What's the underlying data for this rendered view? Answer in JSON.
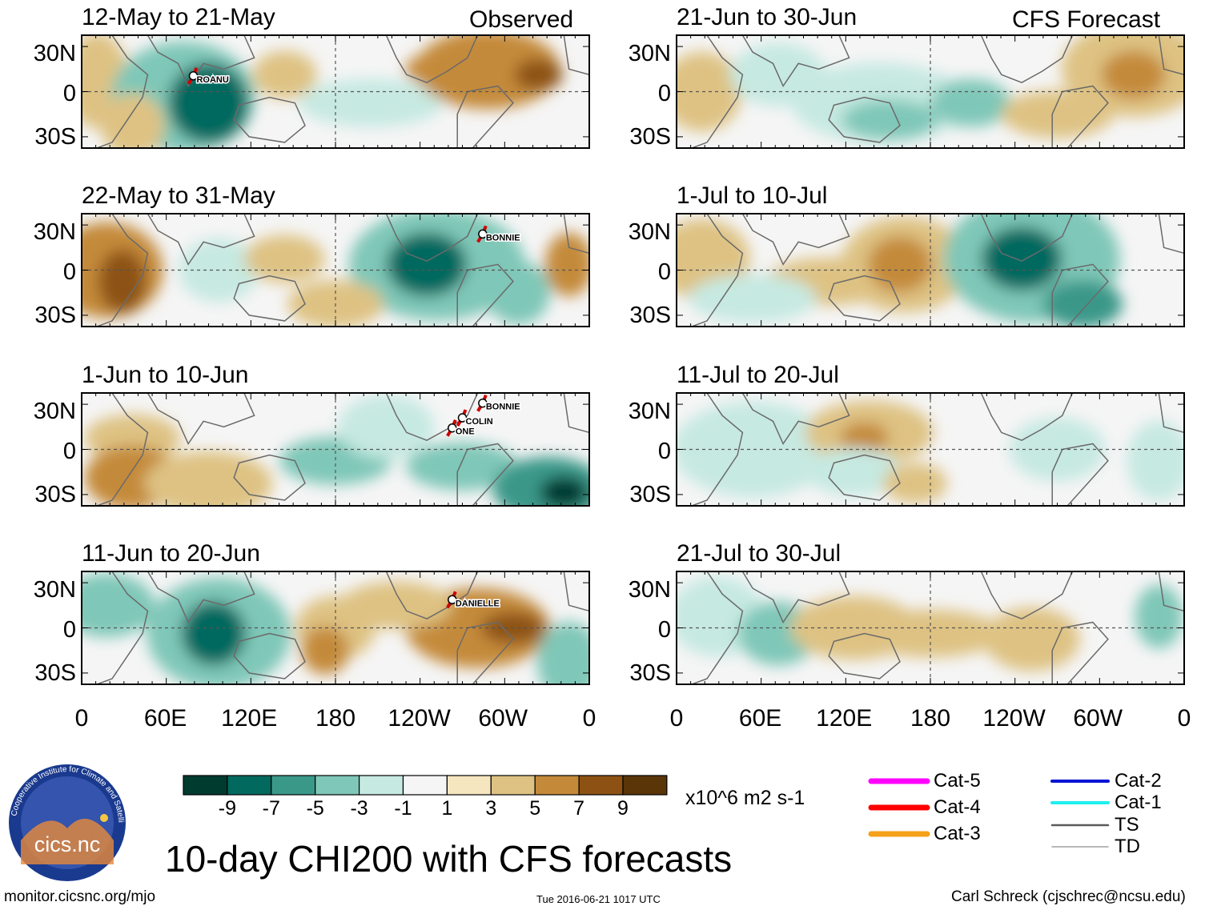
{
  "title": "10-day CHI200 with CFS forecasts",
  "units": "x10^6 m2 s-1",
  "footer": {
    "left": "monitor.cicsnc.org/mjo",
    "center": "Tue 2016-06-21 1017 UTC",
    "right": "Carl Schreck (cjschrec@ncsu.edu)"
  },
  "logo": {
    "ring_text": "Cooperative Institute for Climate and Satellites",
    "label": "cics.nc"
  },
  "column_labels": {
    "left": "Observed",
    "right": "CFS Forecast"
  },
  "lat_labels": [
    "30N",
    "0",
    "30S"
  ],
  "lon_labels": [
    "0",
    "60E",
    "120E",
    "180",
    "120W",
    "60W",
    "0"
  ],
  "colorbar": {
    "colors": [
      "#003b30",
      "#01695e",
      "#3a9889",
      "#7fc7b8",
      "#c6e9e1",
      "#f5f5f5",
      "#f5e6bf",
      "#dec283",
      "#c48a3a",
      "#8d5213",
      "#5a3508"
    ],
    "labels": [
      "-9",
      "-7",
      "-5",
      "-3",
      "-1",
      "1",
      "3",
      "5",
      "7",
      "9"
    ]
  },
  "track_legend": [
    {
      "label": "Cat-5",
      "color": "#ff00ff"
    },
    {
      "label": "Cat-4",
      "color": "#ff0000"
    },
    {
      "label": "Cat-3",
      "color": "#f5a01a"
    },
    {
      "label": "Cat-2",
      "color": "#0014d4"
    },
    {
      "label": "Cat-1",
      "color": "#1ef0f0"
    },
    {
      "label": "TS",
      "color": "#5a5a5a"
    },
    {
      "label": "TD",
      "color": "#a0a0a0"
    }
  ],
  "panels": [
    {
      "id": "obs-1",
      "period": "12-May to 21-May",
      "storms": [
        "ROANU"
      ]
    },
    {
      "id": "obs-2",
      "period": "22-May to 31-May",
      "storms": [
        "BONNIE"
      ]
    },
    {
      "id": "obs-3",
      "period": "1-Jun to 10-Jun",
      "storms": [
        "BONNIE",
        "COLIN",
        "ONE"
      ]
    },
    {
      "id": "obs-4",
      "period": "11-Jun to 20-Jun",
      "storms": [
        "DANIELLE"
      ]
    },
    {
      "id": "fcst-1",
      "period": "21-Jun to 30-Jun",
      "storms": []
    },
    {
      "id": "fcst-2",
      "period": "1-Jul to 10-Jul",
      "storms": []
    },
    {
      "id": "fcst-3",
      "period": "11-Jul to 20-Jul",
      "storms": []
    },
    {
      "id": "fcst-4",
      "period": "21-Jul to 30-Jul",
      "storms": []
    }
  ]
}
